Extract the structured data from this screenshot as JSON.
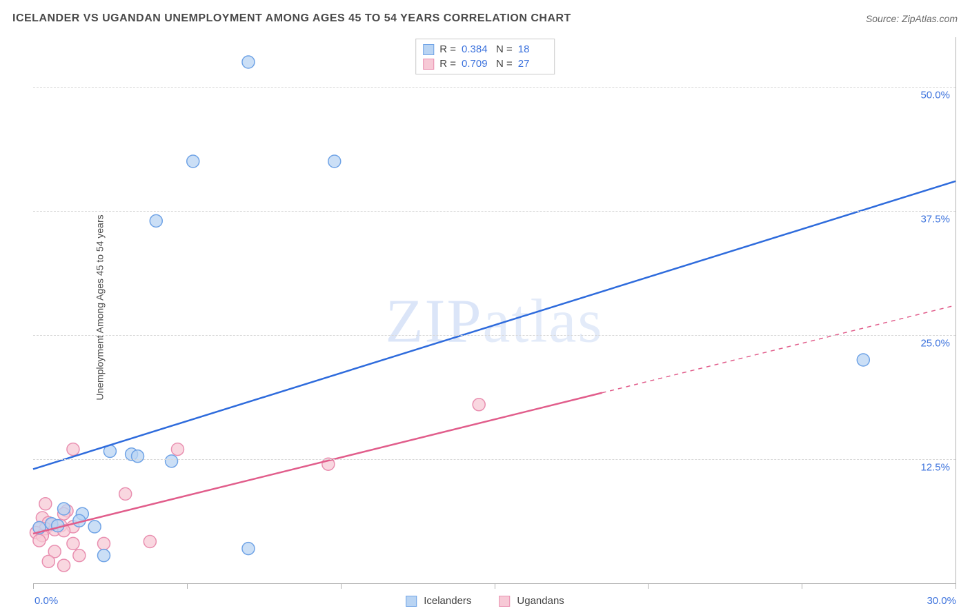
{
  "title": "ICELANDER VS UGANDAN UNEMPLOYMENT AMONG AGES 45 TO 54 YEARS CORRELATION CHART",
  "source": "Source: ZipAtlas.com",
  "y_axis_label": "Unemployment Among Ages 45 to 54 years",
  "watermark": {
    "part1": "ZIP",
    "part2": "atlas"
  },
  "chart": {
    "type": "scatter",
    "background": "#ffffff",
    "grid_color": "#d8d8d8",
    "axis_color": "#b0b0b0",
    "x_range": [
      0,
      30
    ],
    "y_range": [
      0,
      55
    ],
    "y_ticks": [
      12.5,
      25.0,
      37.5,
      50.0
    ],
    "y_tick_labels": [
      "12.5%",
      "25.0%",
      "37.5%",
      "50.0%"
    ],
    "x_ticks": [
      0,
      5,
      10,
      15,
      20,
      25,
      30
    ],
    "x_axis_labels": {
      "left": "0.0%",
      "right": "30.0%"
    },
    "tick_label_color": "#3d73dd",
    "tick_label_fontsize": 15,
    "marker_radius": 9,
    "marker_stroke_width": 1.5,
    "line_width": 2.5,
    "series": [
      {
        "name": "Icelanders",
        "fill": "#b9d4f3",
        "stroke": "#6fa3e6",
        "line_color": "#2e6bdc",
        "line_dash": "none",
        "R": "0.384",
        "N": "18",
        "regression": {
          "x1": 0,
          "y1": 11.5,
          "x2": 30,
          "y2": 40.5
        },
        "points": [
          {
            "x": 7.0,
            "y": 52.5
          },
          {
            "x": 5.2,
            "y": 42.5
          },
          {
            "x": 9.8,
            "y": 42.5
          },
          {
            "x": 4.0,
            "y": 36.5
          },
          {
            "x": 27.0,
            "y": 22.5
          },
          {
            "x": 2.5,
            "y": 13.3
          },
          {
            "x": 3.2,
            "y": 13.0
          },
          {
            "x": 3.4,
            "y": 12.8
          },
          {
            "x": 4.5,
            "y": 12.3
          },
          {
            "x": 1.0,
            "y": 7.5
          },
          {
            "x": 1.6,
            "y": 7.0
          },
          {
            "x": 1.5,
            "y": 6.3
          },
          {
            "x": 0.6,
            "y": 6.0
          },
          {
            "x": 0.8,
            "y": 5.8
          },
          {
            "x": 2.0,
            "y": 5.7
          },
          {
            "x": 7.0,
            "y": 3.5
          },
          {
            "x": 2.3,
            "y": 2.8
          },
          {
            "x": 0.2,
            "y": 5.6
          }
        ]
      },
      {
        "name": "Ugandans",
        "fill": "#f7c9d6",
        "stroke": "#e98fb0",
        "line_color": "#e15d8b",
        "line_dash": "none",
        "dash_from_x": 18.5,
        "R": "0.709",
        "N": "27",
        "regression": {
          "x1": 0,
          "y1": 5.0,
          "x2": 30,
          "y2": 28.0
        },
        "points": [
          {
            "x": 14.5,
            "y": 18.0
          },
          {
            "x": 4.7,
            "y": 13.5
          },
          {
            "x": 1.3,
            "y": 13.5
          },
          {
            "x": 9.6,
            "y": 12.0
          },
          {
            "x": 3.0,
            "y": 9.0
          },
          {
            "x": 0.4,
            "y": 8.0
          },
          {
            "x": 1.1,
            "y": 7.3
          },
          {
            "x": 1.0,
            "y": 7.0
          },
          {
            "x": 0.3,
            "y": 6.6
          },
          {
            "x": 0.5,
            "y": 6.1
          },
          {
            "x": 0.6,
            "y": 5.9
          },
          {
            "x": 0.9,
            "y": 5.8
          },
          {
            "x": 1.3,
            "y": 5.7
          },
          {
            "x": 0.2,
            "y": 5.6
          },
          {
            "x": 0.4,
            "y": 5.5
          },
          {
            "x": 0.7,
            "y": 5.4
          },
          {
            "x": 1.0,
            "y": 5.3
          },
          {
            "x": 0.1,
            "y": 5.1
          },
          {
            "x": 0.3,
            "y": 4.8
          },
          {
            "x": 1.3,
            "y": 4.0
          },
          {
            "x": 2.3,
            "y": 4.0
          },
          {
            "x": 3.8,
            "y": 4.2
          },
          {
            "x": 0.7,
            "y": 3.2
          },
          {
            "x": 1.5,
            "y": 2.8
          },
          {
            "x": 0.5,
            "y": 2.2
          },
          {
            "x": 1.0,
            "y": 1.8
          },
          {
            "x": 0.2,
            "y": 4.3
          }
        ]
      }
    ]
  },
  "legend": {
    "items": [
      {
        "label": "Icelanders",
        "fill": "#b9d4f3",
        "stroke": "#6fa3e6"
      },
      {
        "label": "Ugandans",
        "fill": "#f7c9d6",
        "stroke": "#e98fb0"
      }
    ]
  }
}
